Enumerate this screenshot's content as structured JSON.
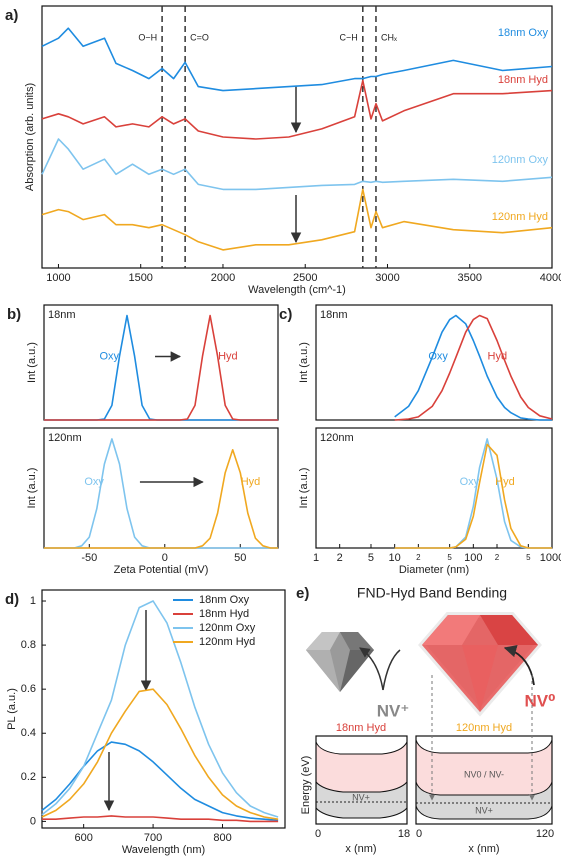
{
  "chart_data": [
    {
      "label": "a)",
      "type": "line",
      "xlabel": "Wavelength (cm^-1)",
      "ylabel": "Absorption (arb. units)",
      "legend": "inline",
      "x": [
        900,
        1000,
        1060,
        1150,
        1280,
        1350,
        1450,
        1550,
        1630,
        1700,
        1770,
        1850,
        2000,
        2200,
        2400,
        2600,
        2800,
        2850,
        2900,
        2930,
        2970,
        3100,
        3400,
        3700,
        4000
      ],
      "xlim": [
        900,
        4000
      ],
      "xticks": [
        1000,
        1500,
        2000,
        2500,
        3000,
        3500,
        4000
      ],
      "ylim": [
        0,
        260
      ],
      "vlines": [
        1630,
        1770,
        2850,
        2930
      ],
      "vline_labels": [
        "O−H",
        "C=O",
        "C−H",
        "CHₓ"
      ],
      "series": [
        {
          "name": "18nm Oxy",
          "color": "#1f8ce0",
          "values": [
            220,
            228,
            238,
            220,
            228,
            203,
            196,
            188,
            198,
            188,
            204,
            180,
            176,
            178,
            180,
            182,
            188,
            188,
            190,
            190,
            192,
            196,
            206,
            196,
            200
          ]
        },
        {
          "name": "18nm Hyd",
          "color": "#d9413b",
          "values": [
            148,
            153,
            150,
            143,
            150,
            140,
            143,
            140,
            150,
            143,
            148,
            136,
            130,
            128,
            130,
            138,
            150,
            186,
            148,
            163,
            146,
            156,
            173,
            173,
            176
          ]
        },
        {
          "name": "120nm Oxy",
          "color": "#7ec4ee",
          "values": [
            93,
            128,
            118,
            98,
            108,
            93,
            103,
            93,
            98,
            93,
            98,
            83,
            78,
            78,
            80,
            82,
            83,
            86,
            85,
            86,
            85,
            86,
            88,
            86,
            90
          ]
        },
        {
          "name": "120nm Hyd",
          "color": "#f0a820",
          "values": [
            53,
            58,
            56,
            48,
            53,
            43,
            43,
            40,
            43,
            38,
            33,
            26,
            18,
            23,
            23,
            28,
            36,
            78,
            40,
            56,
            40,
            46,
            38,
            35,
            40
          ]
        }
      ]
    },
    {
      "label": "b)",
      "type": "line",
      "subtitle": "18nm",
      "ylabel": "Int (a.u.)",
      "legend": "peaks",
      "x": [
        -80,
        -75,
        -70,
        -65,
        -60,
        -55,
        -50,
        -45,
        -40,
        -35,
        -30,
        -25,
        -20,
        -15,
        -10,
        -5,
        0,
        5,
        10,
        15,
        20,
        25,
        30,
        35,
        40,
        45,
        50,
        55,
        60,
        65,
        70,
        75
      ],
      "xlim": [
        -80,
        75
      ],
      "ylim": [
        0,
        1.1
      ],
      "series": [
        {
          "name": "Oxy",
          "color": "#1f8ce0",
          "values": [
            0,
            0,
            0,
            0,
            0,
            0,
            0,
            0,
            0.01,
            0.14,
            0.61,
            1,
            0.61,
            0.14,
            0.01,
            0,
            0,
            0,
            0,
            0,
            0,
            0,
            0,
            0,
            0,
            0,
            0,
            0,
            0,
            0,
            0,
            0
          ]
        },
        {
          "name": "Hyd",
          "color": "#d9413b",
          "values": [
            0,
            0,
            0,
            0,
            0,
            0,
            0,
            0,
            0,
            0,
            0,
            0,
            0,
            0,
            0,
            0,
            0,
            0,
            0,
            0.01,
            0.14,
            0.61,
            1,
            0.61,
            0.14,
            0.01,
            0,
            0,
            0,
            0,
            0,
            0
          ]
        }
      ]
    },
    {
      "type": "line",
      "subtitle": "120nm",
      "ylabel": "Int (a.u.)",
      "xlabel": "Zeta Potential (mV)",
      "legend": "peaks",
      "x": [
        -80,
        -75,
        -70,
        -65,
        -60,
        -55,
        -50,
        -45,
        -40,
        -35,
        -30,
        -25,
        -20,
        -15,
        -10,
        -5,
        0,
        5,
        10,
        15,
        20,
        25,
        30,
        35,
        40,
        45,
        50,
        55,
        60,
        65,
        70,
        75
      ],
      "xlim": [
        -80,
        75
      ],
      "xticks": [
        -50,
        0,
        50
      ],
      "ylim": [
        0,
        1.1
      ],
      "series": [
        {
          "name": "Oxy",
          "color": "#7ec4ee",
          "values": [
            0,
            0,
            0,
            0,
            0,
            0.02,
            0.1,
            0.36,
            0.77,
            1,
            0.77,
            0.36,
            0.1,
            0.02,
            0,
            0,
            0,
            0,
            0,
            0,
            0,
            0,
            0,
            0,
            0,
            0,
            0,
            0,
            0,
            0,
            0,
            0
          ]
        },
        {
          "name": "Hyd",
          "color": "#f0a820",
          "values": [
            0,
            0,
            0,
            0,
            0,
            0,
            0,
            0,
            0,
            0,
            0,
            0,
            0,
            0,
            0,
            0,
            0,
            0,
            0,
            0,
            0,
            0.02,
            0.09,
            0.32,
            0.69,
            0.9,
            0.69,
            0.32,
            0.09,
            0.02,
            0,
            0
          ]
        }
      ]
    },
    {
      "label": "c)",
      "type": "line",
      "subtitle": "18nm",
      "ylabel": "Int (a.u.)",
      "legend": "peaks",
      "xscale": "log",
      "x": [
        10,
        15,
        20,
        30,
        40,
        50,
        60,
        80,
        100,
        120,
        150,
        200,
        250,
        300,
        400,
        500,
        700,
        1000
      ],
      "xlim": [
        1,
        1000
      ],
      "ylim": [
        0,
        1.1
      ],
      "series": [
        {
          "name": "Oxy",
          "color": "#1f8ce0",
          "values": [
            0.03,
            0.13,
            0.28,
            0.6,
            0.84,
            0.96,
            1,
            0.92,
            0.76,
            0.61,
            0.42,
            0.22,
            0.12,
            0.07,
            0.02,
            0.01,
            0,
            0
          ]
        },
        {
          "name": "Hyd",
          "color": "#d9413b",
          "values": [
            0,
            0.01,
            0.03,
            0.13,
            0.28,
            0.45,
            0.6,
            0.84,
            0.96,
            1,
            0.97,
            0.76,
            0.57,
            0.42,
            0.22,
            0.12,
            0.04,
            0.01
          ]
        }
      ]
    },
    {
      "type": "line",
      "subtitle": "120nm",
      "ylabel": "Int (a.u.)",
      "xlabel": "Diameter (nm)",
      "legend": "peaks",
      "xscale": "log",
      "x": [
        10,
        15,
        20,
        30,
        40,
        50,
        60,
        80,
        100,
        120,
        150,
        200,
        250,
        300,
        400,
        500,
        700,
        1000
      ],
      "xlim": [
        1,
        1000
      ],
      "xticks": [
        1,
        2,
        5,
        10,
        {
          "value": 20,
          "label": "2"
        },
        {
          "value": 50,
          "label": "5"
        },
        100,
        {
          "value": 200,
          "label": "2"
        },
        {
          "value": 500,
          "label": "5"
        },
        1000
      ],
      "ylim": [
        0,
        1.1
      ],
      "series": [
        {
          "name": "Oxy",
          "color": "#7ec4ee",
          "values": [
            0,
            0,
            0,
            0,
            0,
            0,
            0.01,
            0.1,
            0.38,
            0.74,
            1,
            0.63,
            0.24,
            0.07,
            0.01,
            0,
            0,
            0
          ]
        },
        {
          "name": "Hyd",
          "color": "#f0a820",
          "values": [
            0,
            0,
            0,
            0,
            0,
            0,
            0.01,
            0.08,
            0.29,
            0.6,
            0.95,
            0.85,
            0.44,
            0.18,
            0.02,
            0,
            0,
            0
          ]
        }
      ]
    },
    {
      "label": "d)",
      "type": "line",
      "xlabel": "Wavelength (nm)",
      "ylabel": "PL (a.u.)",
      "legend": "upper right",
      "x": [
        540,
        560,
        580,
        600,
        620,
        640,
        660,
        680,
        700,
        720,
        740,
        760,
        780,
        800,
        820,
        840,
        860,
        880
      ],
      "xlim": [
        540,
        890
      ],
      "xticks": [
        600,
        700,
        800
      ],
      "ylim": [
        -0.03,
        1.05
      ],
      "yticks": [
        0,
        0.2,
        0.4,
        0.6,
        0.8,
        1
      ],
      "series": [
        {
          "name": "18nm Oxy",
          "color": "#1f8ce0",
          "values": [
            0.05,
            0.1,
            0.17,
            0.25,
            0.32,
            0.36,
            0.35,
            0.32,
            0.27,
            0.21,
            0.15,
            0.1,
            0.07,
            0.04,
            0.025,
            0.015,
            0.01,
            0.005
          ]
        },
        {
          "name": "18nm Hyd",
          "color": "#d9413b",
          "values": [
            0.01,
            0.01,
            0.015,
            0.02,
            0.02,
            0.025,
            0.02,
            0.02,
            0.02,
            0.015,
            0.01,
            0.01,
            0.01,
            0.005,
            0.005,
            0,
            0,
            0
          ]
        },
        {
          "name": "120nm Oxy",
          "color": "#7ec4ee",
          "values": [
            0.03,
            0.08,
            0.15,
            0.25,
            0.4,
            0.55,
            0.8,
            0.97,
            1,
            0.9,
            0.72,
            0.52,
            0.35,
            0.22,
            0.13,
            0.07,
            0.04,
            0.02
          ]
        },
        {
          "name": "120nm Hyd",
          "color": "#f0a820",
          "values": [
            0.02,
            0.05,
            0.1,
            0.17,
            0.27,
            0.4,
            0.5,
            0.59,
            0.6,
            0.53,
            0.42,
            0.3,
            0.2,
            0.12,
            0.07,
            0.04,
            0.02,
            0.01
          ]
        }
      ]
    }
  ],
  "band_diagram": {
    "label": "e)",
    "title": "FND-Hyd Band Bending",
    "small_label": "NV⁺",
    "large_label": "NV⁰",
    "ylabel": "Energy (eV)",
    "panels": [
      {
        "title": "18nm Hyd",
        "lower_label": "NV+",
        "xlabel": "x (nm)",
        "xticks": [
          "0",
          "18"
        ]
      },
      {
        "title": "120nm Hyd",
        "band_label": "NV0 / NV-",
        "lower_label": "NV+",
        "xlabel": "x (nm)",
        "xticks": [
          "0",
          "120"
        ]
      }
    ]
  }
}
